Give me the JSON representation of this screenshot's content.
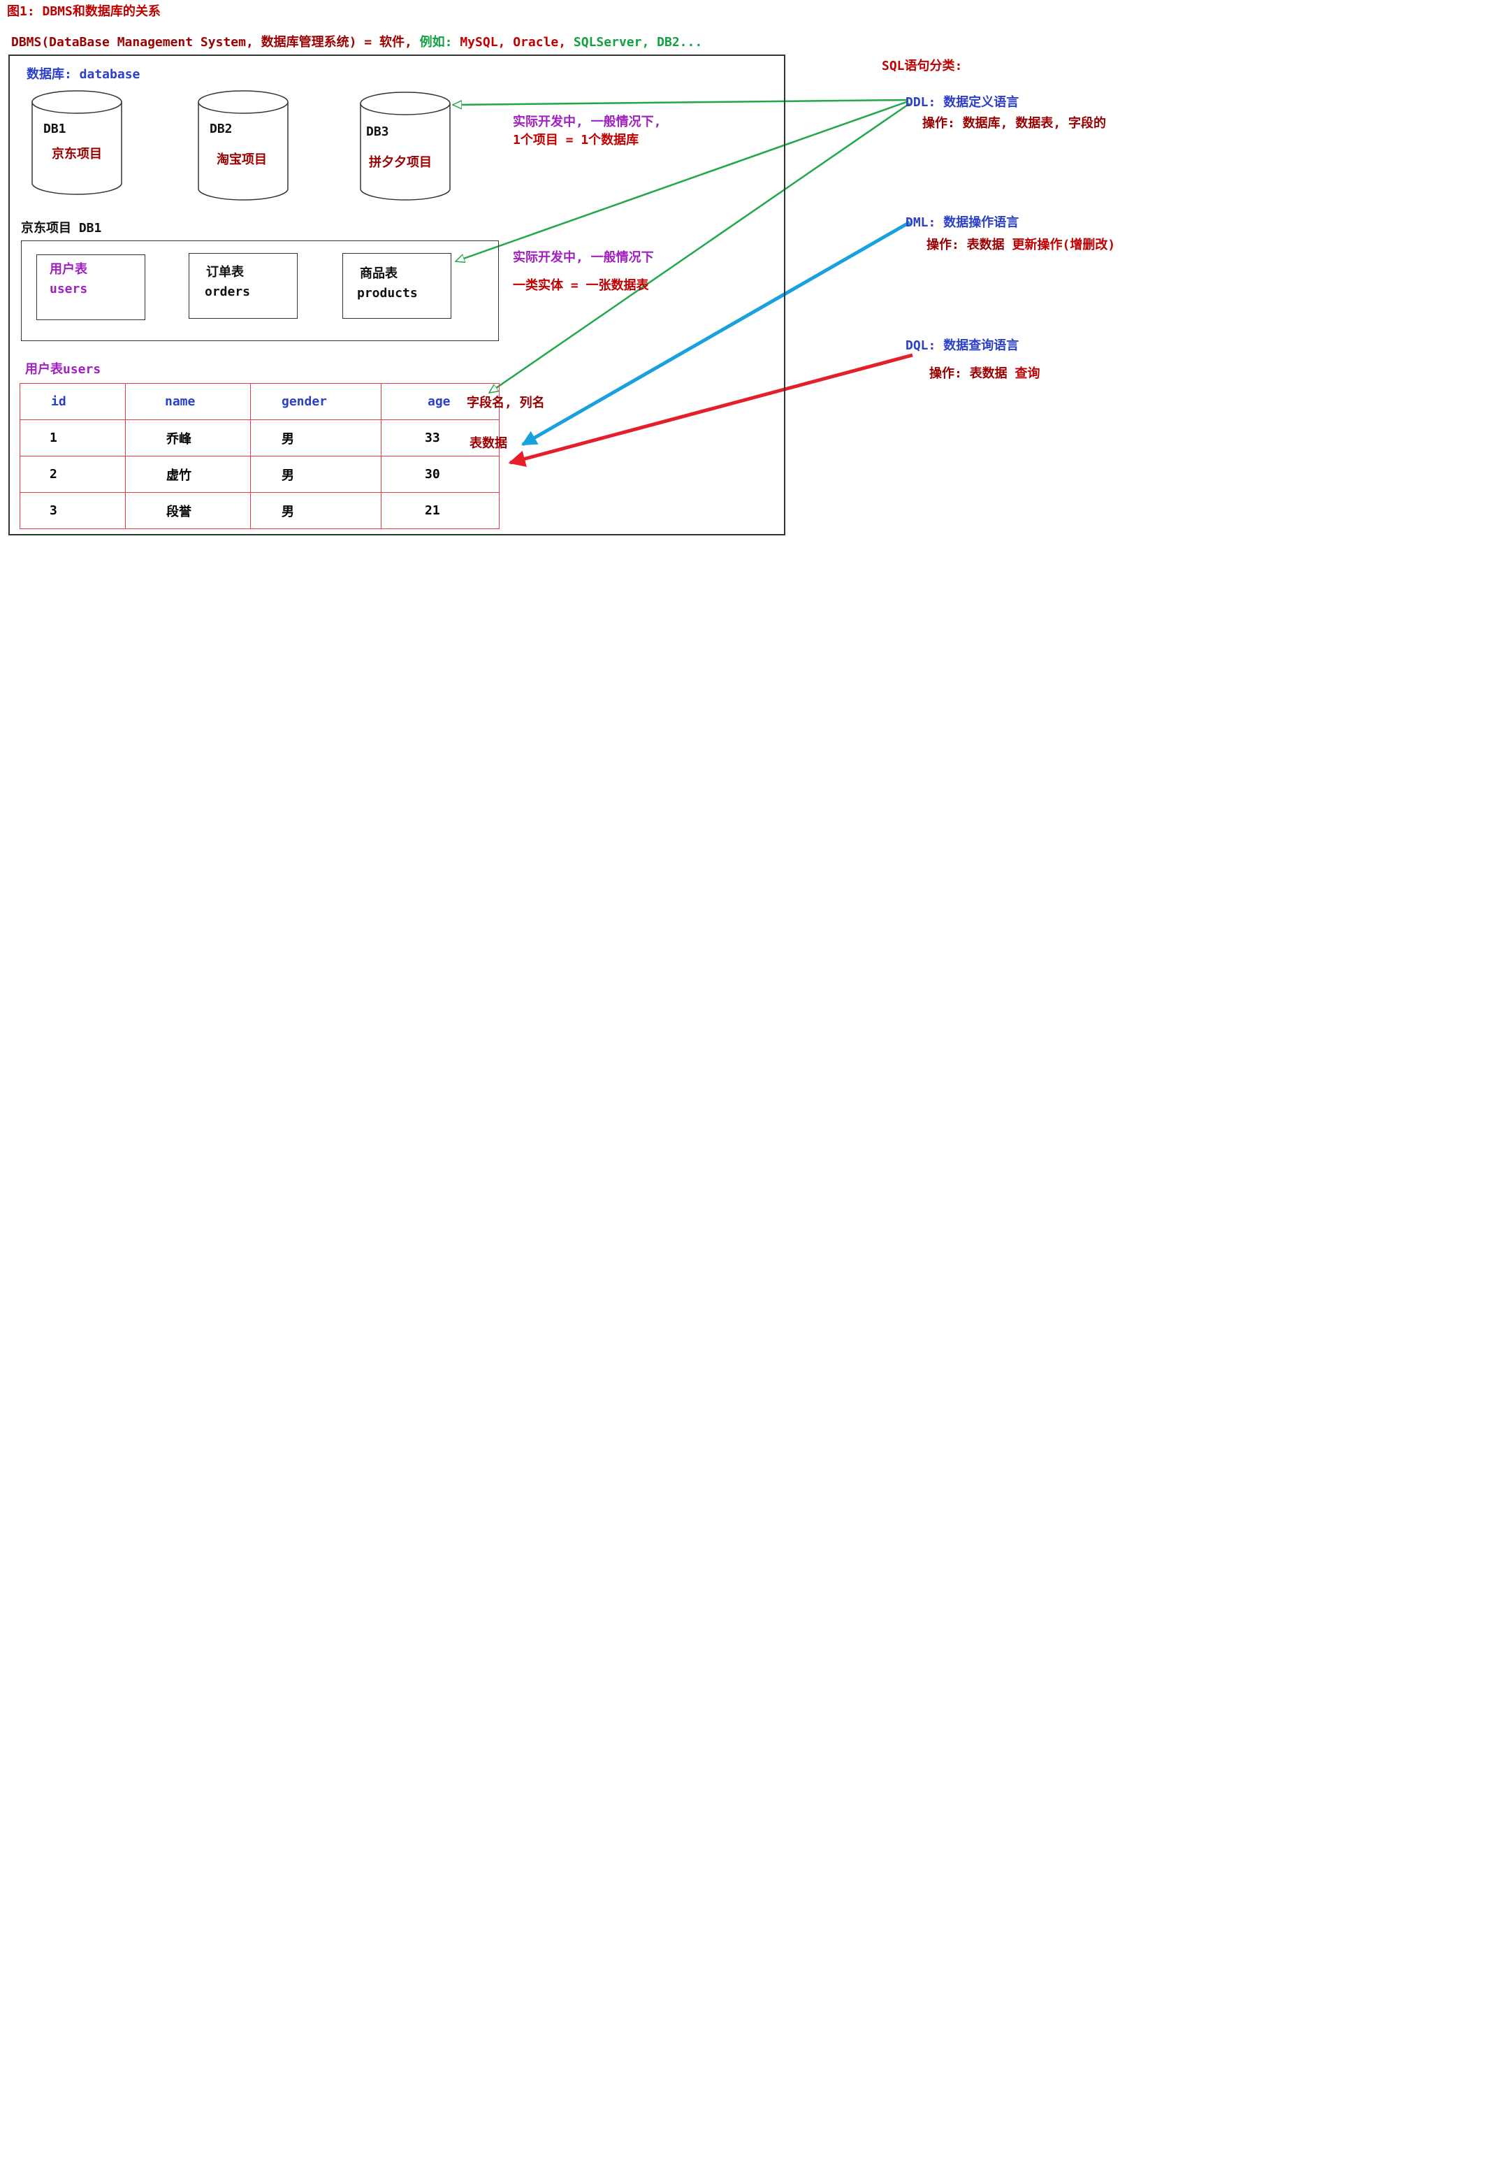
{
  "figure_title": "图1: DBMS和数据库的关系",
  "dbms_line": {
    "prefix": "DBMS(DataBase Management System, 数据库管理系统) = 软件,",
    "example_label": "例如:",
    "mysql": "MySQL,",
    "oracle": "Oracle,",
    "sqlserver": "SQLServer,",
    "db2": "DB2..."
  },
  "database_section": {
    "label": "数据库: database",
    "databases": [
      {
        "name": "DB1",
        "project": "京东项目"
      },
      {
        "name": "DB2",
        "project": "淘宝项目"
      },
      {
        "name": "DB3",
        "project": "拼夕夕项目"
      }
    ],
    "note_line1": "实际开发中, 一般情况下,",
    "note_line2": "1个项目 = 1个数据库"
  },
  "db1_section": {
    "label": "京东项目 DB1",
    "tables": [
      {
        "cn": "用户表",
        "en": "users"
      },
      {
        "cn": "订单表",
        "en": "orders"
      },
      {
        "cn": "商品表",
        "en": "products"
      }
    ],
    "note_line1": "实际开发中, 一般情况下",
    "note_line2": "一类实体 = 一张数据表"
  },
  "users_table": {
    "label": "用户表users",
    "headers": [
      "id",
      "name",
      "gender",
      "age"
    ],
    "rows": [
      [
        "1",
        "乔峰",
        "男",
        "33"
      ],
      [
        "2",
        "虚竹",
        "男",
        "30"
      ],
      [
        "3",
        "段誉",
        "男",
        "21"
      ]
    ],
    "field_note": "字段名, 列名",
    "data_note": "表数据"
  },
  "sql_classification": {
    "title": "SQL语句分类:",
    "ddl": {
      "name": "DDL:",
      "desc": "数据定义语言",
      "op_label": "操作:",
      "op_text": "数据库, 数据表, 字段的"
    },
    "dml": {
      "name": "DML:",
      "desc": "数据操作语言",
      "op_label": "操作:",
      "op_text": "表数据",
      "op_extra": "更新操作(增删改)"
    },
    "dql": {
      "name": "DQL:",
      "desc": "数据查询语言",
      "op_label": "操作:",
      "op_text": "表数据",
      "op_extra": "查询"
    }
  },
  "colors": {
    "green_arrow": "#22a84a",
    "blue_arrow": "#1aa0dc",
    "red_arrow": "#e61e2a",
    "table_border": "#e83a4a"
  }
}
